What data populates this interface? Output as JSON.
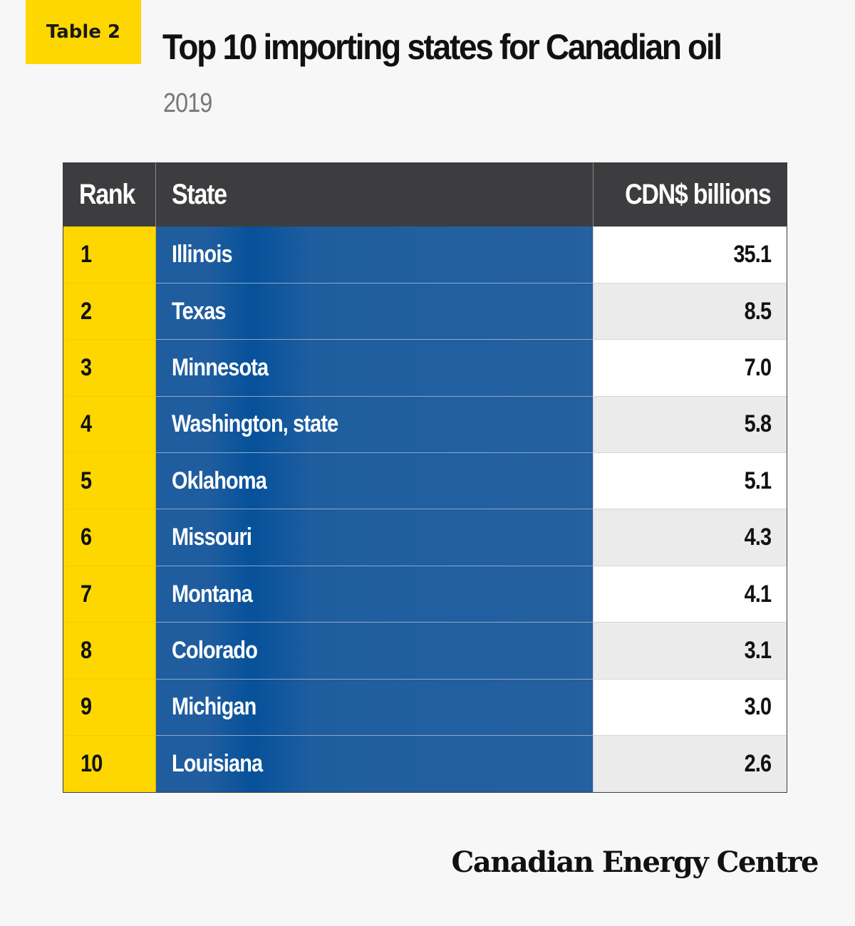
{
  "badge": "Table 2",
  "title": "Top 10 importing states for Canadian oil",
  "subtitle": "2019",
  "colors": {
    "badge_yellow": "#ffd700",
    "header_dark": "#3d3d3f",
    "state_blue": "#2160a0",
    "row_alt_gray": "#ebebeb"
  },
  "chart_data": {
    "type": "table",
    "title": "Top 10 importing states for Canadian oil",
    "subtitle": "2019",
    "columns": [
      "Rank",
      "State",
      "CDN$ billions"
    ],
    "rows": [
      {
        "rank": "1",
        "state": "Illinois",
        "value": "35.1"
      },
      {
        "rank": "2",
        "state": "Texas",
        "value": "8.5"
      },
      {
        "rank": "3",
        "state": "Minnesota",
        "value": "7.0"
      },
      {
        "rank": "4",
        "state": "Washington, state",
        "value": "5.8"
      },
      {
        "rank": "5",
        "state": "Oklahoma",
        "value": "5.1"
      },
      {
        "rank": "6",
        "state": "Missouri",
        "value": "4.3"
      },
      {
        "rank": "7",
        "state": "Montana",
        "value": "4.1"
      },
      {
        "rank": "8",
        "state": "Colorado",
        "value": "3.1"
      },
      {
        "rank": "9",
        "state": "Michigan",
        "value": "3.0"
      },
      {
        "rank": "10",
        "state": "Louisiana",
        "value": "2.6"
      }
    ]
  },
  "footer": {
    "logo": "Canadian Energy Centre"
  }
}
